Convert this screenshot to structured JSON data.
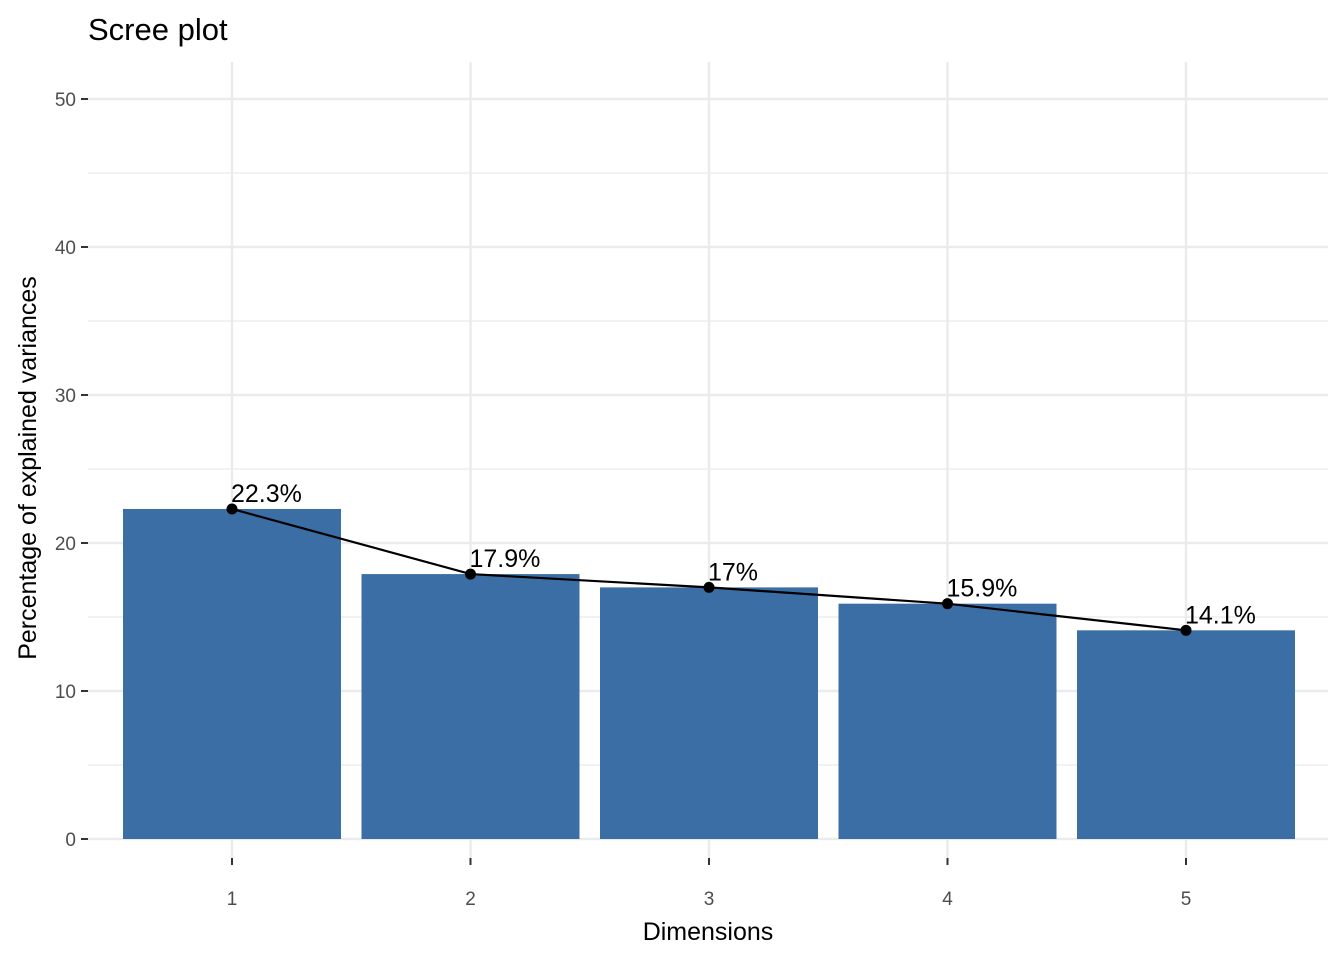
{
  "chart_data": {
    "type": "bar",
    "title": "Scree plot",
    "xlabel": "Dimensions",
    "ylabel": "Percentage of explained variances",
    "categories": [
      "1",
      "2",
      "3",
      "4",
      "5"
    ],
    "values": [
      22.3,
      17.9,
      17,
      15.9,
      14.1
    ],
    "data_labels": [
      "22.3%",
      "17.9%",
      "17%",
      "15.9%",
      "14.1%"
    ],
    "overlay_line": true,
    "ylim": [
      0,
      52.5
    ],
    "yticks": [
      0,
      10,
      20,
      30,
      40,
      50
    ],
    "grid": true,
    "legend": "none",
    "colors": {
      "bar": "#3b6ea5",
      "line": "#000000",
      "grid": "#ebebeb"
    }
  }
}
